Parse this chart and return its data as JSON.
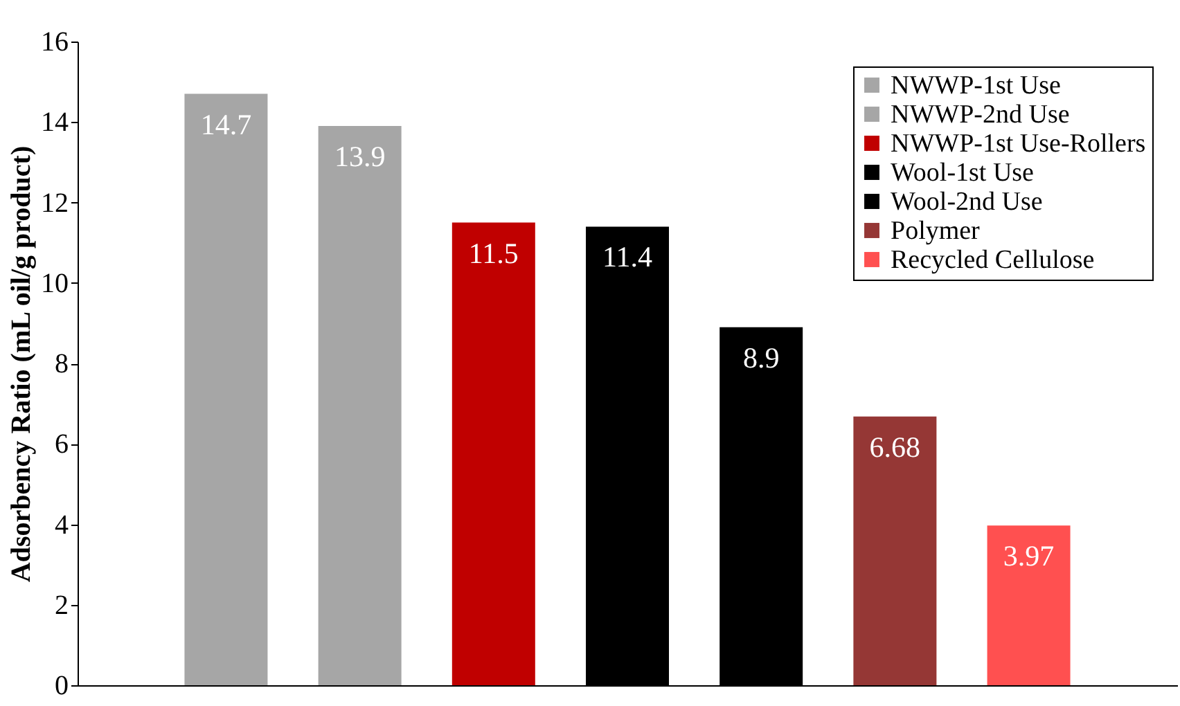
{
  "chart_data": {
    "type": "bar",
    "ylabel": "Adsorbency Ratio (mL oil/g product)",
    "categories": [
      null,
      null,
      null,
      null,
      null,
      null,
      null
    ],
    "series": [
      {
        "name": "NWWP-1st Use",
        "color": "#a6a6a6",
        "values": [
          14.7,
          null,
          null,
          null,
          null,
          null,
          null
        ]
      },
      {
        "name": "NWWP-2nd Use",
        "color": "#a6a6a6",
        "values": [
          null,
          13.9,
          null,
          null,
          null,
          null,
          null
        ]
      },
      {
        "name": "NWWP-1st Use-Rollers",
        "color": "#c00000",
        "values": [
          null,
          null,
          11.5,
          null,
          null,
          null,
          null
        ]
      },
      {
        "name": "Wool-1st Use",
        "color": "#000000",
        "values": [
          null,
          null,
          null,
          11.4,
          null,
          null,
          null
        ]
      },
      {
        "name": "Wool-2nd Use",
        "color": "#000000",
        "values": [
          null,
          null,
          null,
          null,
          8.9,
          null,
          null
        ]
      },
      {
        "name": "Polymer",
        "color": "#953735",
        "values": [
          null,
          null,
          null,
          null,
          null,
          6.68,
          null
        ]
      },
      {
        "name": "Recycled Cellulose",
        "color": "#ff5050",
        "values": [
          null,
          null,
          null,
          null,
          null,
          null,
          3.97
        ]
      }
    ],
    "ylim": [
      0,
      16
    ],
    "yticks": [
      0,
      2,
      4,
      6,
      8,
      10,
      12,
      14,
      16
    ],
    "data_labels": true,
    "legend": "top right",
    "grid": false,
    "tick_labels": "y"
  }
}
